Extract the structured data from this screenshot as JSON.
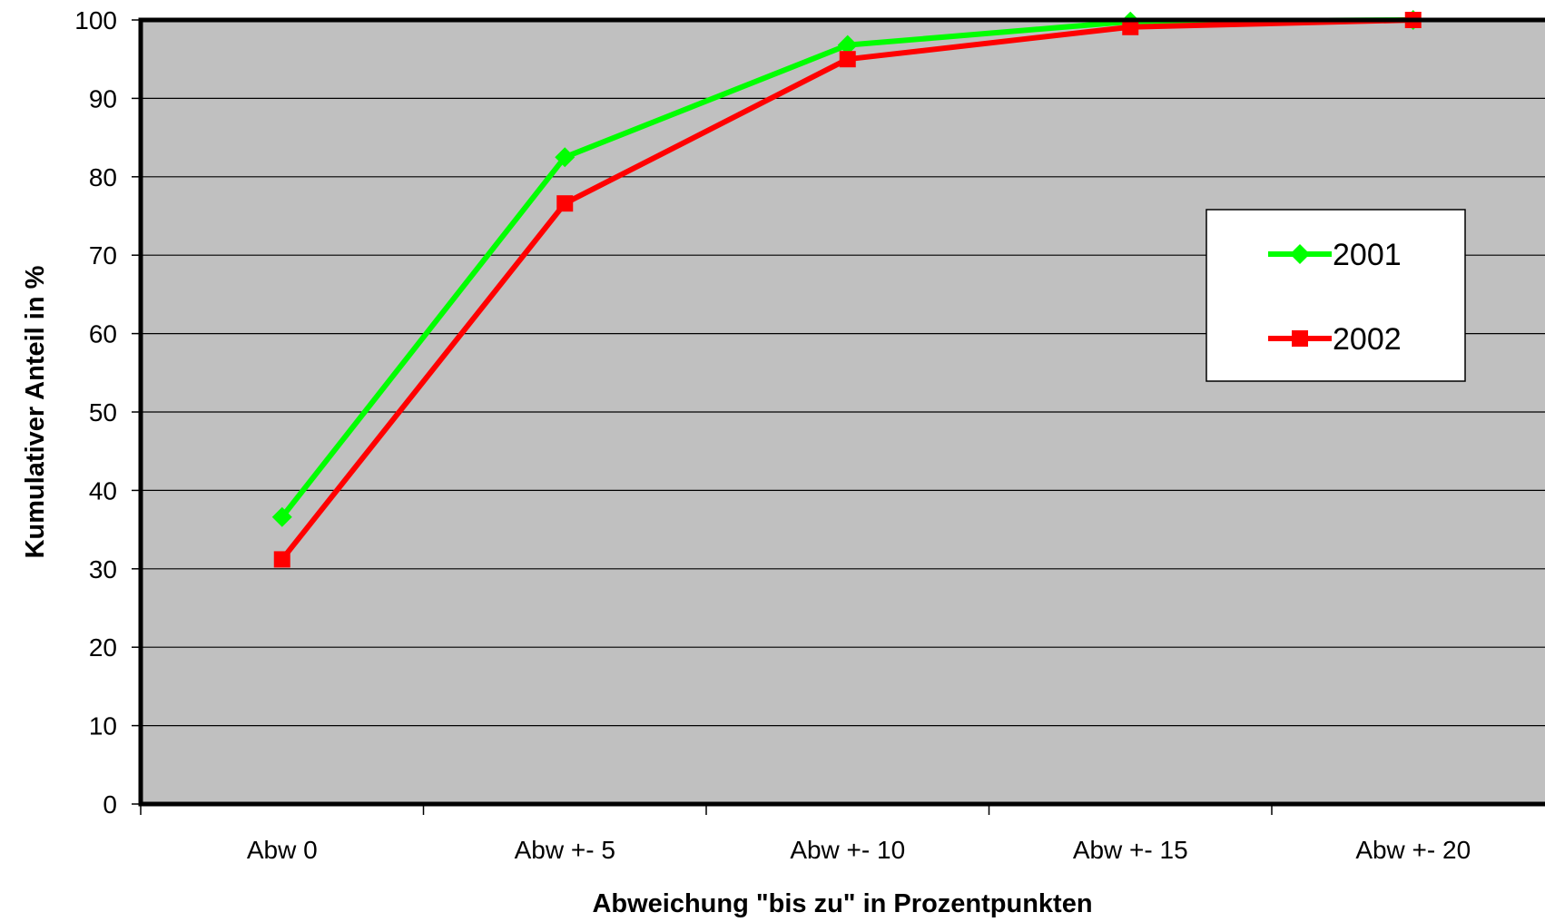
{
  "chart_data": {
    "type": "line",
    "title": "",
    "xlabel": "Abweichung \"bis zu\" in Prozentpunkten",
    "ylabel": "Kumulativer Anteil in %",
    "categories": [
      "Abw 0",
      "Abw +- 5",
      "Abw +- 10",
      "Abw +- 15",
      "Abw +- 20"
    ],
    "ylim": [
      0,
      100
    ],
    "yticks": [
      0,
      10,
      20,
      30,
      40,
      50,
      60,
      70,
      80,
      90,
      100
    ],
    "grid": true,
    "legend_position": "right",
    "plot_background": "#c0c0c0",
    "series": [
      {
        "name": "2001",
        "values": [
          36.6,
          82.5,
          96.8,
          99.8,
          100
        ],
        "color": "#00ff00",
        "marker": "diamond"
      },
      {
        "name": "2002",
        "values": [
          31.2,
          76.6,
          95.0,
          99.1,
          100
        ],
        "color": "#ff0000",
        "marker": "square"
      }
    ]
  }
}
